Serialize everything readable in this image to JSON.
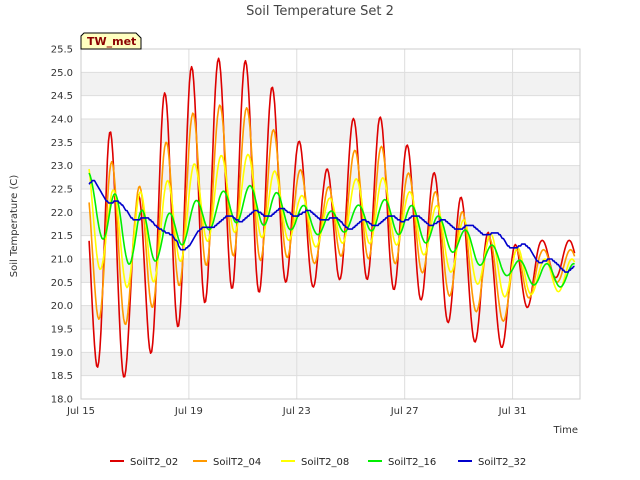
{
  "chart_data": {
    "type": "line",
    "title": "Soil Temperature Set 2",
    "xlabel": "Time",
    "ylabel": "Soil Temperature (C)",
    "badge": "TW_met",
    "x_start": "Jul 15",
    "x_range_days": [
      0,
      18.5
    ],
    "x_ticks": [
      {
        "day": 0,
        "label": "Jul 15"
      },
      {
        "day": 4,
        "label": "Jul 19"
      },
      {
        "day": 8,
        "label": "Jul 23"
      },
      {
        "day": 12,
        "label": "Jul 27"
      },
      {
        "day": 16,
        "label": "Jul 31"
      }
    ],
    "ylim": [
      18.0,
      25.5
    ],
    "y_ticks": [
      "18.0",
      "18.5",
      "19.0",
      "19.5",
      "20.0",
      "20.5",
      "21.0",
      "21.5",
      "22.0",
      "22.5",
      "23.0",
      "23.5",
      "24.0",
      "24.5",
      "25.0",
      "25.5"
    ],
    "grid": true,
    "legend_position": "bottom",
    "series": [
      {
        "name": "SoilT2_02",
        "color": "#dd0000",
        "daily_max": [
          22.2,
          23.9,
          22.1,
          24.5,
          25.1,
          25.3,
          25.3,
          24.8,
          23.6,
          22.8,
          24.0,
          24.1,
          23.5,
          22.9,
          22.4,
          21.6,
          21.3,
          21.4
        ],
        "daily_min": [
          19.1,
          18.4,
          18.5,
          19.3,
          19.7,
          20.3,
          20.4,
          20.2,
          20.7,
          20.2,
          20.8,
          20.4,
          20.3,
          20.0,
          19.4,
          19.1,
          19.1,
          20.6
        ]
      },
      {
        "name": "SoilT2_04",
        "color": "#ff9900",
        "daily_max": [
          22.6,
          23.2,
          22.4,
          23.4,
          24.1,
          24.3,
          24.3,
          23.9,
          23.0,
          22.4,
          23.3,
          23.5,
          22.9,
          22.5,
          22.1,
          21.5,
          21.2,
          21.2
        ],
        "daily_min": [
          20.3,
          19.4,
          19.7,
          20.1,
          20.6,
          21.0,
          21.1,
          20.9,
          21.1,
          20.8,
          21.2,
          20.9,
          20.9,
          20.6,
          20.0,
          19.8,
          19.6,
          20.5
        ]
      },
      {
        "name": "SoilT2_08",
        "color": "#ffff00",
        "daily_max": [
          23.4,
          22.5,
          22.4,
          22.6,
          23.0,
          23.2,
          23.3,
          23.0,
          22.4,
          22.2,
          22.7,
          22.8,
          22.5,
          22.2,
          21.9,
          21.6,
          21.3,
          21.0
        ],
        "daily_min": [
          21.2,
          20.6,
          20.3,
          20.6,
          21.1,
          21.5,
          21.6,
          21.4,
          21.4,
          21.2,
          21.4,
          21.3,
          21.3,
          21.0,
          20.6,
          20.4,
          20.1,
          20.3
        ]
      },
      {
        "name": "SoilT2_16",
        "color": "#00ee00",
        "daily_max": [
          23.0,
          22.5,
          22.1,
          21.9,
          22.2,
          22.4,
          22.6,
          22.5,
          22.2,
          22.0,
          22.1,
          22.3,
          22.2,
          22.0,
          21.7,
          21.4,
          21.0,
          20.9
        ],
        "daily_min": [
          22.3,
          21.2,
          20.8,
          21.0,
          21.4,
          21.7,
          21.8,
          21.7,
          21.6,
          21.5,
          21.6,
          21.6,
          21.5,
          21.3,
          21.1,
          20.8,
          20.6,
          20.4
        ]
      },
      {
        "name": "SoilT2_32",
        "color": "#0000cc",
        "trend_days": [
          0,
          0.5,
          1,
          2,
          3,
          3.7,
          4.5,
          5,
          6,
          7,
          8,
          9,
          10,
          11,
          12,
          13,
          14,
          15,
          16,
          16.6,
          17,
          18
        ],
        "trend_values": [
          22.5,
          22.6,
          22.3,
          21.9,
          21.7,
          21.2,
          21.6,
          21.8,
          21.9,
          22.0,
          22.0,
          21.9,
          21.7,
          21.8,
          21.9,
          21.8,
          21.7,
          21.6,
          21.3,
          21.2,
          21.0,
          20.8
        ]
      }
    ]
  }
}
